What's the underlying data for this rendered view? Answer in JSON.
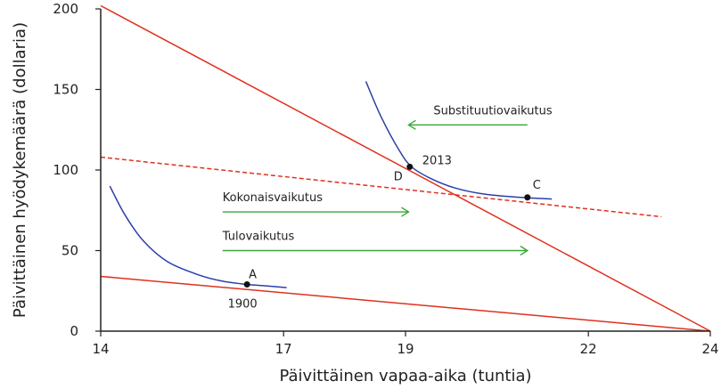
{
  "chart_data": {
    "type": "line",
    "title": "",
    "xlabel": "Päivittäinen vapaa-aika (tuntia)",
    "ylabel": "Päivittäinen hyödykemäärä (dollaria)",
    "xlim": [
      14,
      24
    ],
    "ylim": [
      0,
      200
    ],
    "x_ticks": [
      14,
      17,
      19,
      22,
      24
    ],
    "y_ticks": [
      0,
      50,
      100,
      150,
      200
    ],
    "grid": false,
    "colors": {
      "budget_line": "#e0301e",
      "indifference_curve": "#2b3fa8",
      "arrow": "#3aa63a",
      "point": "#111111"
    },
    "budget_lines": [
      {
        "style": "solid",
        "x": [
          14,
          24
        ],
        "y": [
          34,
          0
        ]
      },
      {
        "style": "solid",
        "x": [
          14,
          24
        ],
        "y": [
          202,
          0
        ]
      },
      {
        "style": "dashed",
        "x": [
          14,
          23.2
        ],
        "y": [
          108,
          71
        ]
      }
    ],
    "indifference_curves": [
      {
        "x": [
          14.15,
          14.4,
          14.7,
          15.1,
          15.6,
          16.0,
          16.4,
          16.75,
          17.05
        ],
        "y": [
          90,
          72,
          56,
          43,
          35,
          31,
          29,
          28,
          27
        ]
      },
      {
        "x": [
          18.35,
          18.6,
          18.9,
          19.1,
          19.4,
          19.8,
          20.3,
          20.9,
          21.4
        ],
        "y": [
          155,
          133,
          112,
          102,
          95,
          89,
          85,
          83,
          82
        ]
      }
    ],
    "points": [
      {
        "label": "A",
        "sublabel": "1900",
        "x": 16.4,
        "y": 29
      },
      {
        "label": "D",
        "sublabel": "2013",
        "x": 19.07,
        "y": 102
      },
      {
        "label": "C",
        "sublabel": "",
        "x": 21.0,
        "y": 83
      }
    ],
    "arrows": [
      {
        "label": "Substituutiovaikutus",
        "x_from": 21.0,
        "x_to": 19.05,
        "y": 128
      },
      {
        "label": "Kokonaisvaikutus",
        "x_from": 16.0,
        "x_to": 19.05,
        "y": 74
      },
      {
        "label": "Tulovaikutus",
        "x_from": 16.0,
        "x_to": 21.0,
        "y": 50
      }
    ]
  }
}
